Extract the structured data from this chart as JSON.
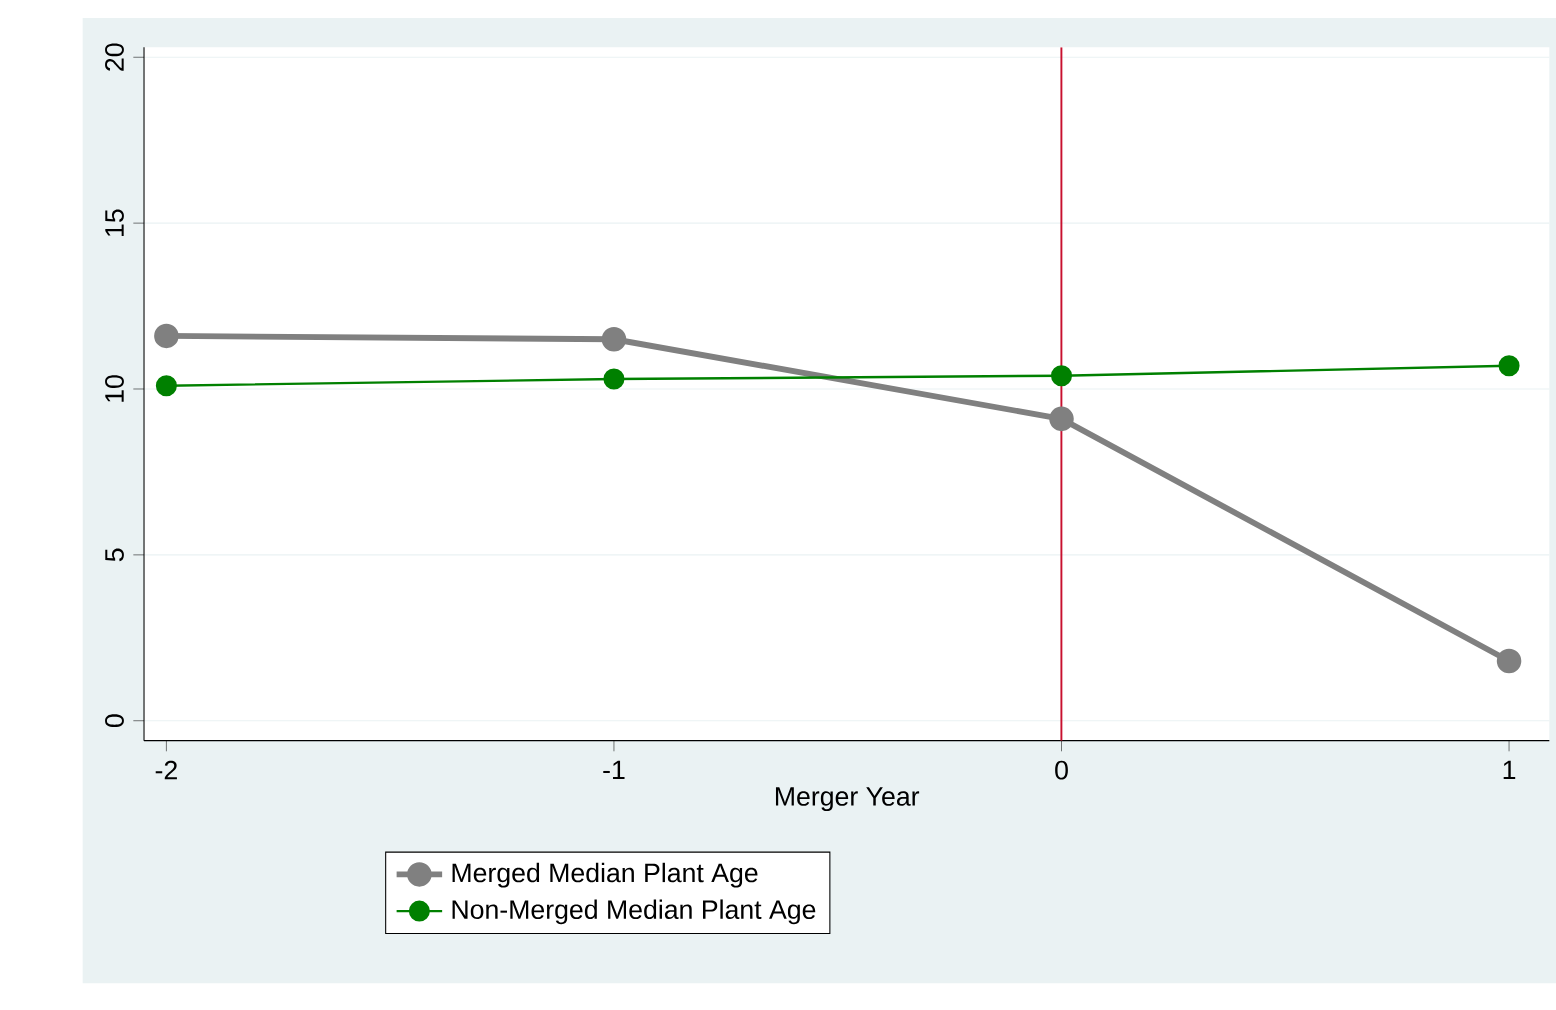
{
  "chart_data": {
    "type": "line",
    "xlabel": "Merger Year",
    "x": [
      -2,
      -1,
      0,
      1
    ],
    "series": [
      {
        "name": "Merged Median Plant Age",
        "color": "#808080",
        "values": [
          11.6,
          11.5,
          9.1,
          1.8
        ]
      },
      {
        "name": "Non-Merged Median Plant Age",
        "color": "#008000",
        "values": [
          10.1,
          10.3,
          10.4,
          10.7
        ]
      }
    ],
    "xlim": [
      -2.05,
      1.09
    ],
    "ylim": [
      -0.6,
      20.3
    ],
    "xticks": [
      -2,
      -1,
      0,
      1
    ],
    "yticks": [
      0,
      5,
      10,
      15,
      20
    ],
    "ref_lines": [
      {
        "axis": "x",
        "value": 0,
        "color": "#c8102e"
      }
    ],
    "grid": "y",
    "legend": "bottom",
    "marker": "circle",
    "line_style": "solid"
  }
}
